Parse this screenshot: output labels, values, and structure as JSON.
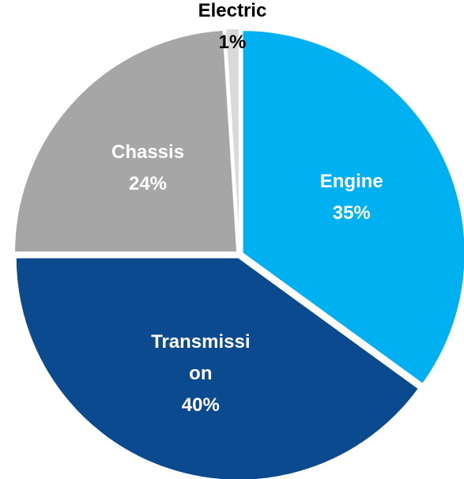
{
  "chart_data": {
    "type": "pie",
    "categories": [
      "Engine",
      "Transmission",
      "Chassis",
      "Electric"
    ],
    "values": [
      35,
      40,
      24,
      1
    ],
    "value_labels": [
      "35%",
      "40%",
      "24%",
      "1%"
    ],
    "colors": [
      "#00B0F0",
      "#0B4A8F",
      "#A6A6A6",
      "#D9D9D9"
    ],
    "label_colors": [
      "#ffffff",
      "#ffffff",
      "#ffffff",
      "#000000"
    ]
  }
}
